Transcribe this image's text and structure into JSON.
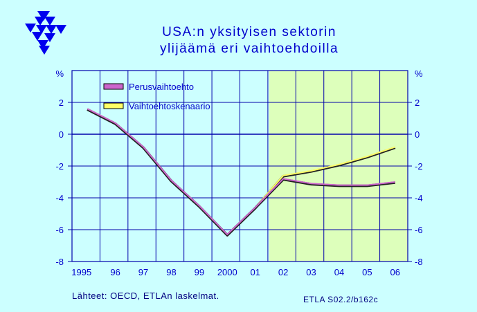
{
  "title_line1": "USA:n yksityisen sektorin",
  "title_line2": "ylijäämä eri vaihtoehdoilla",
  "source": "Lähteet:   OECD, ETLAn laskelmat.",
  "code": "ETLA S02.2/b162c",
  "colors": {
    "background": "#ccffff",
    "history_area": "#ccffff",
    "forecast_area": "#ddffbb",
    "text": "#0000cc",
    "series_base": "#cc66cc",
    "series_alt": "#ffff66"
  },
  "chart_data": {
    "type": "line",
    "x": [
      1995,
      1996,
      1997,
      1998,
      1999,
      2000,
      2001,
      2002,
      2003,
      2004,
      2005,
      2006
    ],
    "x_tick_labels": [
      "1995",
      "96",
      "97",
      "98",
      "99",
      "2000",
      "01",
      "02",
      "03",
      "04",
      "05",
      "06"
    ],
    "ylim": [
      -8,
      4
    ],
    "y_ticks": [
      -8,
      -6,
      -4,
      -2,
      0,
      2
    ],
    "y_tick_labels": [
      "-8",
      "-6",
      "-4",
      "-2",
      "0",
      "2"
    ],
    "y_unit": "%",
    "forecast_start": 2002,
    "grid": true,
    "legend_position": "top-left",
    "series": [
      {
        "name": "Perusvaihtoehto",
        "color": "#cc66cc",
        "values": [
          1.6,
          0.7,
          -0.8,
          -2.9,
          -4.5,
          -6.3,
          -4.6,
          -2.8,
          -3.1,
          -3.2,
          -3.2,
          -3.0
        ]
      },
      {
        "name": "Vaihtoehtoskenaario",
        "color": "#ffff66",
        "values": [
          1.6,
          0.7,
          -0.8,
          -2.9,
          -4.5,
          -6.3,
          -4.6,
          -2.6,
          -2.3,
          -1.9,
          -1.4,
          -0.8
        ]
      }
    ]
  }
}
